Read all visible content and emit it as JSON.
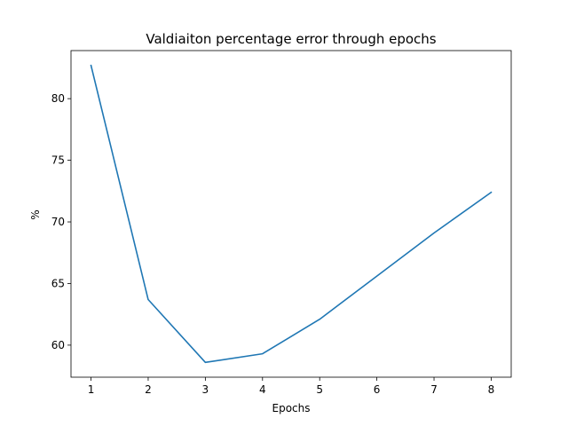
{
  "chart_data": {
    "type": "line",
    "title": "Valdiaiton percentage error through epochs",
    "xlabel": "Epochs",
    "ylabel": "%",
    "x": [
      1,
      2,
      3,
      4,
      5,
      6,
      7,
      8
    ],
    "series": [
      {
        "values": [
          82.7,
          63.7,
          58.6,
          59.3,
          62.1,
          65.6,
          69.1,
          72.4
        ],
        "color": "#1f77b4"
      }
    ],
    "xlim": [
      0.65,
      8.35
    ],
    "ylim": [
      57.4,
      83.9
    ],
    "xticks": [
      1,
      2,
      3,
      4,
      5,
      6,
      7,
      8
    ],
    "xtick_labels": [
      "1",
      "2",
      "3",
      "4",
      "5",
      "6",
      "7",
      "8"
    ],
    "yticks": [
      60,
      65,
      70,
      75,
      80
    ],
    "ytick_labels": [
      "60",
      "65",
      "70",
      "75",
      "80"
    ],
    "grid": false,
    "legend": "none"
  }
}
